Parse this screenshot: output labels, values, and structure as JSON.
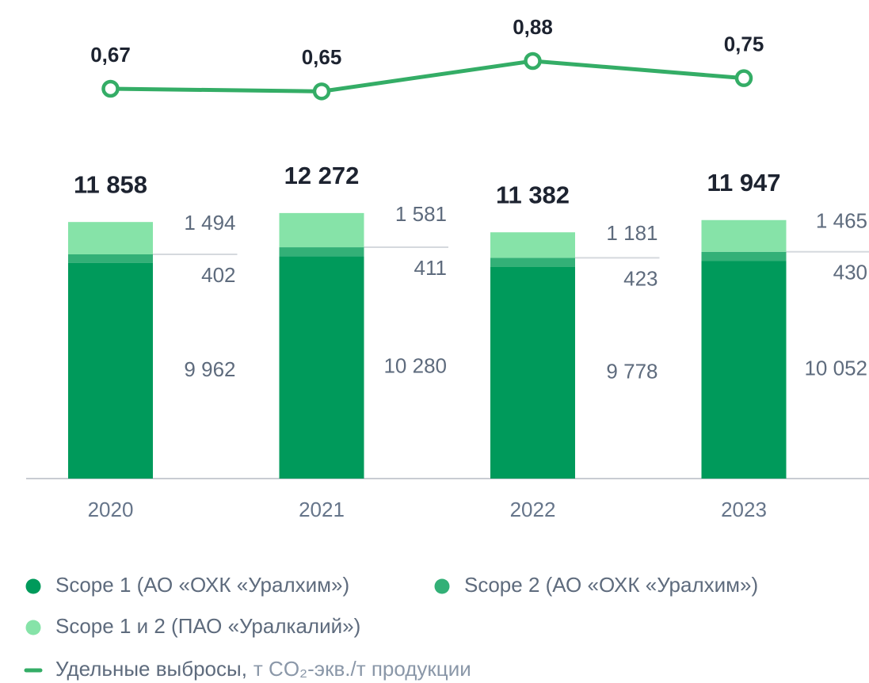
{
  "chart_data": {
    "type": "bar",
    "stacked": true,
    "categories": [
      "2020",
      "2021",
      "2022",
      "2023"
    ],
    "ylim": [
      0,
      13000
    ],
    "series": [
      {
        "name": "Scope 1 (АО «ОХК «Уралхим»)",
        "color": "#009a5b",
        "values": [
          9962,
          10280,
          9778,
          10052
        ],
        "value_labels": [
          "9 962",
          "10 280",
          "9 778",
          "10 052"
        ]
      },
      {
        "name": "Scope 2 (АО «ОХК «Уралхим»)",
        "color": "#33b077",
        "values": [
          402,
          411,
          423,
          430
        ],
        "value_labels": [
          "402",
          "411",
          "423",
          "430"
        ]
      },
      {
        "name": "Scope 1 и 2 (ПАО «Уралкалий»)",
        "color": "#86e3a8",
        "values": [
          1494,
          1581,
          1181,
          1465
        ],
        "value_labels": [
          "1 494",
          "1 581",
          "1 181",
          "1 465"
        ]
      }
    ],
    "totals": {
      "values": [
        11858,
        12272,
        11382,
        11947
      ],
      "value_labels": [
        "11 858",
        "12 272",
        "11 382",
        "11 947"
      ]
    },
    "line": {
      "type": "line",
      "name": "Удельные выбросы,",
      "unit": "т CO₂-экв./т продукции",
      "color": "#34ad66",
      "axis": "y2",
      "values": [
        0.67,
        0.65,
        0.88,
        0.75
      ],
      "value_labels": [
        "0,67",
        "0,65",
        "0,88",
        "0,75"
      ]
    },
    "y2lim": [
      0.4,
      1.0
    ]
  }
}
